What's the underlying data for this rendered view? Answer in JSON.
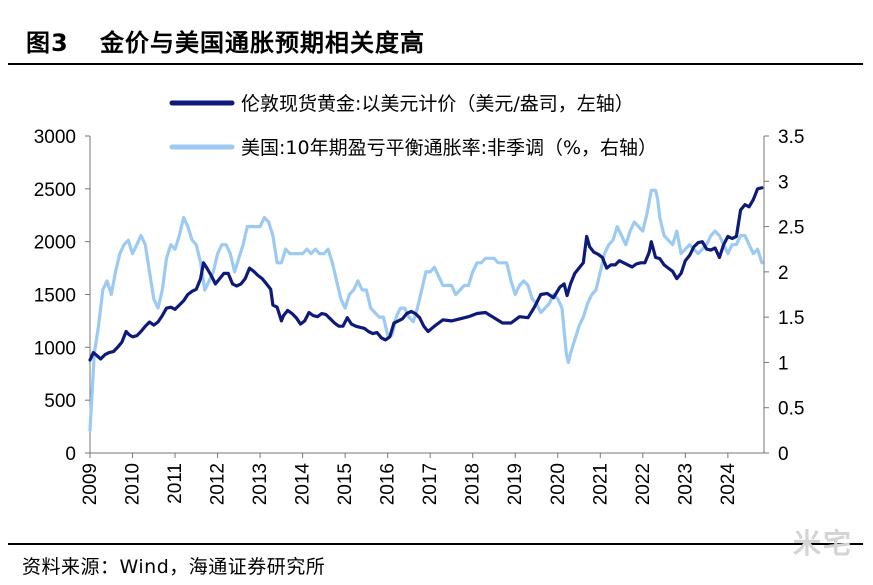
{
  "header": {
    "figure_label": "图3",
    "figure_title": "金价与美国通胀预期相关度高"
  },
  "footer": {
    "source": "资料来源：Wind，海通证券研究所",
    "watermark": "米宅"
  },
  "chart_data": {
    "type": "line",
    "title": "图3  金价与美国通胀预期相关度高",
    "left_axis": {
      "ylim": [
        0,
        3000
      ],
      "ticks": [
        "0",
        "500",
        "1000",
        "1500",
        "2000",
        "2500",
        "3000"
      ]
    },
    "right_axis": {
      "ylim": [
        0,
        3.5
      ],
      "ticks": [
        "0",
        "0.5",
        "1",
        "1.5",
        "2",
        "2.5",
        "3",
        "3.5"
      ]
    },
    "x_axis": {
      "xlim": [
        2009,
        2024.85
      ],
      "ticks": [
        "2009",
        "2010",
        "2011",
        "2012",
        "2013",
        "2014",
        "2015",
        "2016",
        "2017",
        "2018",
        "2019",
        "2020",
        "2021",
        "2022",
        "2023",
        "2024"
      ]
    },
    "grid": false,
    "legend_position": "top-center",
    "colors": {
      "gold": "#0d1a7a",
      "breakeven": "#9ccaf2"
    },
    "series": [
      {
        "name": "伦敦现货黄金:以美元计价（美元/盎司，左轴）",
        "axis": "left",
        "color": "#0d1a7a",
        "x": [
          2009.0,
          2009.08,
          2009.17,
          2009.25,
          2009.35,
          2009.45,
          2009.55,
          2009.65,
          2009.75,
          2009.85,
          2009.92,
          2010.0,
          2010.1,
          2010.2,
          2010.3,
          2010.4,
          2010.5,
          2010.6,
          2010.7,
          2010.8,
          2010.9,
          2011.0,
          2011.1,
          2011.2,
          2011.3,
          2011.4,
          2011.5,
          2011.6,
          2011.67,
          2011.75,
          2011.85,
          2011.95,
          2012.05,
          2012.15,
          2012.25,
          2012.35,
          2012.45,
          2012.55,
          2012.65,
          2012.75,
          2012.85,
          2012.95,
          2013.05,
          2013.15,
          2013.25,
          2013.3,
          2013.4,
          2013.5,
          2013.55,
          2013.65,
          2013.75,
          2013.85,
          2013.95,
          2014.05,
          2014.15,
          2014.25,
          2014.35,
          2014.45,
          2014.55,
          2014.65,
          2014.75,
          2014.85,
          2014.95,
          2015.05,
          2015.15,
          2015.25,
          2015.35,
          2015.45,
          2015.55,
          2015.65,
          2015.75,
          2015.85,
          2015.95,
          2016.05,
          2016.15,
          2016.25,
          2016.35,
          2016.45,
          2016.55,
          2016.65,
          2016.75,
          2016.85,
          2016.95,
          2017.1,
          2017.3,
          2017.5,
          2017.7,
          2017.9,
          2018.1,
          2018.3,
          2018.5,
          2018.7,
          2018.9,
          2019.1,
          2019.3,
          2019.45,
          2019.6,
          2019.75,
          2019.9,
          2020.05,
          2020.15,
          2020.22,
          2020.3,
          2020.4,
          2020.5,
          2020.6,
          2020.68,
          2020.75,
          2020.85,
          2020.95,
          2021.05,
          2021.15,
          2021.25,
          2021.35,
          2021.45,
          2021.55,
          2021.65,
          2021.75,
          2021.85,
          2021.95,
          2022.05,
          2022.15,
          2022.2,
          2022.3,
          2022.4,
          2022.5,
          2022.6,
          2022.7,
          2022.8,
          2022.9,
          2023.0,
          2023.1,
          2023.2,
          2023.3,
          2023.4,
          2023.5,
          2023.6,
          2023.7,
          2023.8,
          2023.9,
          2024.0,
          2024.1,
          2024.2,
          2024.3,
          2024.4,
          2024.5,
          2024.6,
          2024.7,
          2024.8
        ],
        "values": [
          880,
          950,
          920,
          890,
          930,
          950,
          960,
          1000,
          1050,
          1150,
          1120,
          1100,
          1110,
          1150,
          1200,
          1240,
          1210,
          1240,
          1300,
          1370,
          1380,
          1360,
          1400,
          1440,
          1500,
          1530,
          1550,
          1650,
          1800,
          1750,
          1680,
          1600,
          1650,
          1700,
          1700,
          1600,
          1580,
          1600,
          1650,
          1750,
          1720,
          1680,
          1650,
          1600,
          1550,
          1400,
          1380,
          1250,
          1300,
          1350,
          1320,
          1280,
          1220,
          1250,
          1330,
          1300,
          1290,
          1320,
          1310,
          1270,
          1230,
          1200,
          1200,
          1280,
          1220,
          1200,
          1190,
          1180,
          1150,
          1130,
          1140,
          1090,
          1070,
          1100,
          1230,
          1250,
          1270,
          1320,
          1340,
          1320,
          1280,
          1200,
          1150,
          1200,
          1260,
          1250,
          1270,
          1290,
          1320,
          1330,
          1280,
          1230,
          1230,
          1290,
          1280,
          1380,
          1500,
          1510,
          1470,
          1570,
          1600,
          1490,
          1600,
          1700,
          1750,
          1800,
          2050,
          1950,
          1900,
          1880,
          1850,
          1750,
          1780,
          1780,
          1820,
          1800,
          1780,
          1760,
          1790,
          1800,
          1800,
          1900,
          2000,
          1850,
          1840,
          1780,
          1750,
          1720,
          1650,
          1700,
          1820,
          1870,
          1950,
          1990,
          2000,
          1930,
          1920,
          1940,
          1850,
          1970,
          2050,
          2030,
          2050,
          2300,
          2350,
          2330,
          2400,
          2500,
          2510
        ]
      },
      {
        "name": "美国:10年期盈亏平衡通胀率:非季调（%，右轴）",
        "axis": "right",
        "color": "#9ccaf2",
        "x": [
          2009.0,
          2009.1,
          2009.2,
          2009.3,
          2009.4,
          2009.5,
          2009.6,
          2009.7,
          2009.8,
          2009.9,
          2010.0,
          2010.1,
          2010.2,
          2010.3,
          2010.4,
          2010.5,
          2010.6,
          2010.7,
          2010.8,
          2010.9,
          2011.0,
          2011.1,
          2011.2,
          2011.3,
          2011.4,
          2011.5,
          2011.6,
          2011.7,
          2011.8,
          2011.9,
          2012.0,
          2012.1,
          2012.2,
          2012.3,
          2012.4,
          2012.5,
          2012.6,
          2012.7,
          2012.8,
          2012.9,
          2013.0,
          2013.1,
          2013.2,
          2013.3,
          2013.4,
          2013.5,
          2013.6,
          2013.7,
          2013.8,
          2013.9,
          2014.0,
          2014.1,
          2014.2,
          2014.3,
          2014.4,
          2014.5,
          2014.6,
          2014.7,
          2014.8,
          2014.9,
          2015.0,
          2015.1,
          2015.2,
          2015.3,
          2015.4,
          2015.5,
          2015.6,
          2015.7,
          2015.8,
          2015.9,
          2016.0,
          2016.1,
          2016.2,
          2016.3,
          2016.4,
          2016.5,
          2016.6,
          2016.7,
          2016.8,
          2016.9,
          2017.0,
          2017.1,
          2017.2,
          2017.3,
          2017.4,
          2017.5,
          2017.6,
          2017.7,
          2017.8,
          2017.9,
          2018.0,
          2018.1,
          2018.2,
          2018.3,
          2018.4,
          2018.5,
          2018.6,
          2018.7,
          2018.8,
          2018.9,
          2019.0,
          2019.1,
          2019.2,
          2019.3,
          2019.4,
          2019.5,
          2019.6,
          2019.7,
          2019.8,
          2019.9,
          2020.0,
          2020.1,
          2020.2,
          2020.25,
          2020.3,
          2020.4,
          2020.5,
          2020.6,
          2020.7,
          2020.8,
          2020.9,
          2021.0,
          2021.1,
          2021.2,
          2021.3,
          2021.4,
          2021.5,
          2021.6,
          2021.7,
          2021.8,
          2021.9,
          2022.0,
          2022.1,
          2022.2,
          2022.3,
          2022.35,
          2022.4,
          2022.5,
          2022.6,
          2022.7,
          2022.8,
          2022.9,
          2023.0,
          2023.1,
          2023.2,
          2023.3,
          2023.4,
          2023.5,
          2023.6,
          2023.7,
          2023.8,
          2023.9,
          2024.0,
          2024.1,
          2024.2,
          2024.3,
          2024.4,
          2024.5,
          2024.6,
          2024.7,
          2024.8
        ],
        "values": [
          0.25,
          1.1,
          1.4,
          1.8,
          1.9,
          1.75,
          2.0,
          2.2,
          2.3,
          2.35,
          2.2,
          2.3,
          2.4,
          2.3,
          2.0,
          1.7,
          1.6,
          1.8,
          2.15,
          2.3,
          2.25,
          2.4,
          2.6,
          2.5,
          2.35,
          2.3,
          2.1,
          1.8,
          1.9,
          2.0,
          2.2,
          2.3,
          2.3,
          2.2,
          2.0,
          2.15,
          2.3,
          2.5,
          2.5,
          2.5,
          2.5,
          2.6,
          2.55,
          2.4,
          2.1,
          2.1,
          2.25,
          2.2,
          2.2,
          2.2,
          2.2,
          2.25,
          2.2,
          2.25,
          2.2,
          2.2,
          2.25,
          2.1,
          1.9,
          1.7,
          1.6,
          1.75,
          1.8,
          1.9,
          1.8,
          1.8,
          1.6,
          1.55,
          1.5,
          1.5,
          1.3,
          1.3,
          1.5,
          1.6,
          1.6,
          1.5,
          1.45,
          1.6,
          1.8,
          2.0,
          2.0,
          2.05,
          1.95,
          1.85,
          1.85,
          1.85,
          1.75,
          1.8,
          1.85,
          1.85,
          2.0,
          2.1,
          2.1,
          2.15,
          2.15,
          2.15,
          2.1,
          2.1,
          2.1,
          1.9,
          1.75,
          1.85,
          1.9,
          1.85,
          1.7,
          1.65,
          1.55,
          1.6,
          1.65,
          1.75,
          1.7,
          1.6,
          1.1,
          1.0,
          1.1,
          1.25,
          1.4,
          1.5,
          1.65,
          1.75,
          1.8,
          2.0,
          2.2,
          2.3,
          2.35,
          2.5,
          2.4,
          2.3,
          2.45,
          2.55,
          2.5,
          2.45,
          2.65,
          2.9,
          2.9,
          2.8,
          2.6,
          2.4,
          2.35,
          2.3,
          2.45,
          2.2,
          2.25,
          2.3,
          2.25,
          2.2,
          2.25,
          2.3,
          2.4,
          2.45,
          2.4,
          2.3,
          2.2,
          2.3,
          2.3,
          2.4,
          2.4,
          2.3,
          2.2,
          2.25,
          2.1
        ]
      }
    ]
  }
}
